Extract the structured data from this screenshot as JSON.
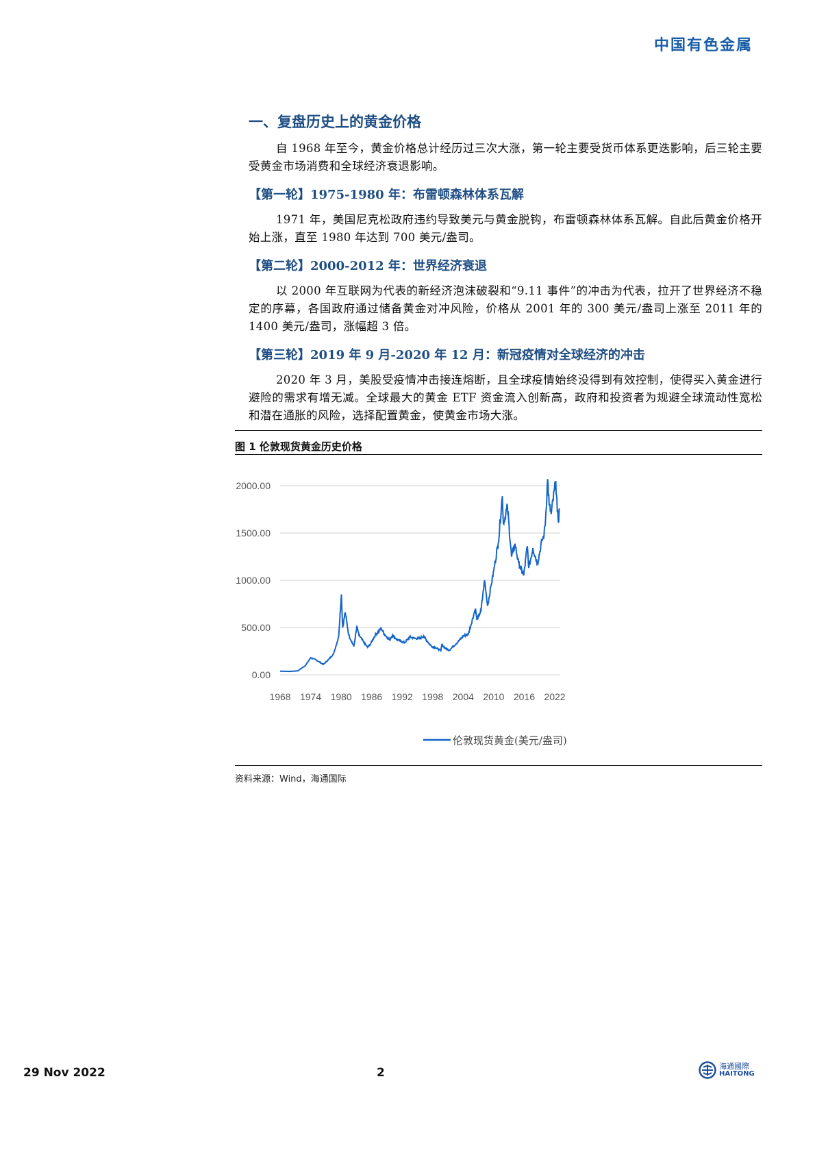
{
  "header": {
    "brand": "中国有色金属"
  },
  "section": {
    "title": "一、复盘历史上的黄金价格",
    "intro": "自 1968 年至今，黄金价格总计经历过三次大涨，第一轮主要受货币体系更迭影响，后三轮主要受黄金市场消费和全球经济衰退影响。",
    "rounds": [
      {
        "heading": "【第一轮】1975-1980 年：布雷顿森林体系瓦解",
        "text": "1971 年，美国尼克松政府违约导致美元与黄金脱钩，布雷顿森林体系瓦解。自此后黄金价格开始上涨，直至 1980 年达到 700 美元/盎司。"
      },
      {
        "heading": "【第二轮】2000-2012 年：世界经济衰退",
        "text": "以 2000 年互联网为代表的新经济泡沫破裂和“9.11 事件”的冲击为代表，拉开了世界经济不稳定的序幕，各国政府通过储备黄金对冲风险，价格从 2001 年的 300 美元/盎司上涨至 2011 年的 1400 美元/盎司，涨幅超 3 倍。"
      },
      {
        "heading": "【第三轮】2019 年 9 月-2020 年 12 月：新冠疫情对全球经济的冲击",
        "text": "2020 年 3 月，美股受疫情冲击接连熔断，且全球疫情始终没得到有效控制，使得买入黄金进行避险的需求有增无减。全球最大的黄金 ETF 资金流入创新高，政府和投资者为规避全球流动性宽松和潜在通胀的风险，选择配置黄金，使黄金市场大涨。"
      }
    ]
  },
  "figure": {
    "title": "图 1 伦敦现货黄金历史价格",
    "source": "资料来源：Wind，海通国际"
  },
  "chart_data": {
    "type": "line",
    "title": "",
    "xlabel": "",
    "ylabel": "",
    "xlim": [
      1968,
      2022.9
    ],
    "ylim": [
      0,
      2000
    ],
    "grid": "horizontal",
    "legend": "bottom",
    "color": "#1565c8",
    "y_ticks": [
      "0.00",
      "500.00",
      "1000.00",
      "1500.00",
      "2000.00"
    ],
    "x_ticks": [
      "1968",
      "1974",
      "1980",
      "1986",
      "1992",
      "1998",
      "2004",
      "2010",
      "2016",
      "2022"
    ],
    "series": [
      {
        "name": "伦敦现货黄金(美元/盎司)",
        "points": [
          [
            1968,
            38
          ],
          [
            1970,
            36
          ],
          [
            1971.5,
            42
          ],
          [
            1973,
            100
          ],
          [
            1974,
            180
          ],
          [
            1975,
            160
          ],
          [
            1976.5,
            110
          ],
          [
            1977.5,
            160
          ],
          [
            1978.5,
            220
          ],
          [
            1979.5,
            400
          ],
          [
            1980.05,
            850
          ],
          [
            1980.3,
            500
          ],
          [
            1980.8,
            660
          ],
          [
            1981.5,
            420
          ],
          [
            1982.5,
            300
          ],
          [
            1983.1,
            510
          ],
          [
            1983.5,
            420
          ],
          [
            1984.5,
            340
          ],
          [
            1985.2,
            290
          ],
          [
            1985.8,
            330
          ],
          [
            1986.7,
            420
          ],
          [
            1987.9,
            490
          ],
          [
            1988.5,
            430
          ],
          [
            1989.5,
            370
          ],
          [
            1990.1,
            420
          ],
          [
            1990.8,
            380
          ],
          [
            1991.5,
            360
          ],
          [
            1992.5,
            340
          ],
          [
            1993.5,
            400
          ],
          [
            1994.5,
            385
          ],
          [
            1995.5,
            385
          ],
          [
            1996.2,
            410
          ],
          [
            1997,
            350
          ],
          [
            1997.8,
            300
          ],
          [
            1998.5,
            290
          ],
          [
            1999.6,
            255
          ],
          [
            1999.8,
            320
          ],
          [
            2000.5,
            280
          ],
          [
            2001.3,
            260
          ],
          [
            2002,
            300
          ],
          [
            2003,
            350
          ],
          [
            2004,
            410
          ],
          [
            2005,
            430
          ],
          [
            2006.4,
            700
          ],
          [
            2006.7,
            580
          ],
          [
            2007.5,
            680
          ],
          [
            2008.2,
            1000
          ],
          [
            2008.8,
            730
          ],
          [
            2009.5,
            950
          ],
          [
            2010,
            1100
          ],
          [
            2010.9,
            1400
          ],
          [
            2011.7,
            1890
          ],
          [
            2011.9,
            1600
          ],
          [
            2012.7,
            1780
          ],
          [
            2013.5,
            1250
          ],
          [
            2014.2,
            1380
          ],
          [
            2014.9,
            1180
          ],
          [
            2015.9,
            1050
          ],
          [
            2016.6,
            1360
          ],
          [
            2016.9,
            1130
          ],
          [
            2017.7,
            1340
          ],
          [
            2018.6,
            1180
          ],
          [
            2019.5,
            1420
          ],
          [
            2019.9,
            1480
          ],
          [
            2020.2,
            1650
          ],
          [
            2020.6,
            2070
          ],
          [
            2020.9,
            1800
          ],
          [
            2021.3,
            1700
          ],
          [
            2022.2,
            2050
          ],
          [
            2022.5,
            1720
          ],
          [
            2022.8,
            1630
          ],
          [
            2022.9,
            1760
          ]
        ]
      }
    ]
  },
  "footer": {
    "date": "29 Nov 2022",
    "page": "2",
    "logo_cn": "海通國際",
    "logo_en": "HAITONG"
  }
}
